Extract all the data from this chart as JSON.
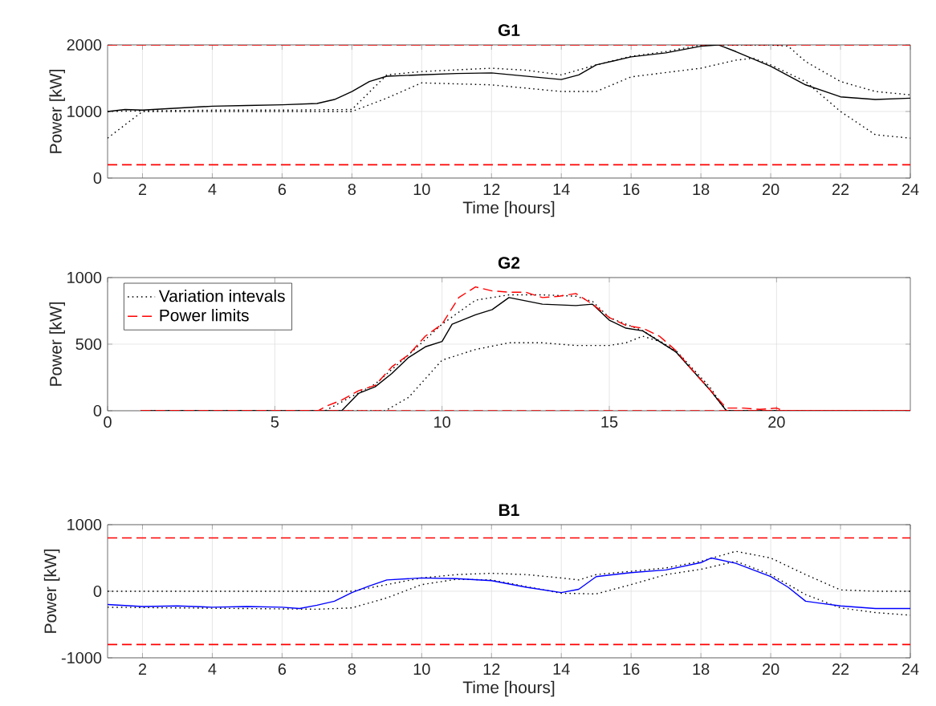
{
  "chart_data": [
    {
      "type": "line",
      "title": "G1",
      "xlabel": "Time [hours]",
      "ylabel": "Power [kW]",
      "xlim": [
        1,
        24
      ],
      "xticks": [
        2,
        4,
        6,
        8,
        10,
        12,
        14,
        16,
        18,
        20,
        22,
        24
      ],
      "ylim": [
        0,
        2000
      ],
      "yticks": [
        0,
        1000,
        2000
      ],
      "grid": true,
      "series": [
        {
          "color": "#000000",
          "line_style": "dotted",
          "x": [
            1,
            2,
            4,
            6,
            8,
            9,
            10,
            12,
            13,
            14,
            15,
            16,
            17,
            18,
            19,
            20,
            20.5,
            21,
            22,
            23,
            24
          ],
          "values": [
            1000,
            1010,
            1020,
            1020,
            1030,
            1550,
            1600,
            1650,
            1620,
            1550,
            1700,
            1830,
            1900,
            2000,
            2000,
            2000,
            1980,
            1750,
            1450,
            1300,
            1250
          ]
        },
        {
          "color": "#000000",
          "line_style": "dotted",
          "x": [
            1,
            2,
            4,
            6,
            8,
            9,
            10,
            12,
            14,
            15,
            16,
            18,
            19,
            19.5,
            20,
            21,
            22,
            23,
            24
          ],
          "values": [
            600,
            1000,
            1000,
            1000,
            1000,
            1200,
            1430,
            1400,
            1300,
            1300,
            1520,
            1650,
            1770,
            1800,
            1700,
            1450,
            1000,
            650,
            600
          ]
        },
        {
          "color": "#000000",
          "line_style": "solid",
          "x": [
            1,
            1.5,
            2,
            3,
            4,
            5,
            6,
            7,
            7.5,
            8,
            8.5,
            9,
            10,
            11,
            12,
            13,
            14,
            14.5,
            15,
            16,
            17,
            18,
            18.5,
            19,
            20,
            21,
            22,
            23,
            24
          ],
          "values": [
            1000,
            1030,
            1020,
            1050,
            1080,
            1090,
            1100,
            1120,
            1180,
            1300,
            1450,
            1530,
            1550,
            1570,
            1580,
            1530,
            1480,
            1550,
            1700,
            1820,
            1880,
            1980,
            2000,
            1900,
            1680,
            1400,
            1220,
            1180,
            1200
          ]
        }
      ],
      "ref_lines": [
        {
          "axis": "y",
          "value": 2000,
          "color": "#ff0000",
          "line_style": "dashed"
        },
        {
          "axis": "y",
          "value": 200,
          "color": "#ff0000",
          "line_style": "dashed"
        }
      ]
    },
    {
      "type": "line",
      "title": "G2",
      "ylabel": "Power [kW]",
      "xlim": [
        0,
        24
      ],
      "xticks": [
        0,
        5,
        10,
        15,
        20
      ],
      "ylim": [
        0,
        1000
      ],
      "yticks": [
        0,
        500,
        1000
      ],
      "grid": true,
      "legend": "top left",
      "series": [
        {
          "name": "Variation intevals",
          "color": "#000000",
          "line_style": "dotted",
          "x": [
            1,
            8.3,
            9,
            10,
            11,
            12,
            13,
            14,
            15,
            15.5,
            16,
            16.5,
            17,
            18,
            18.5,
            24
          ],
          "values": [
            0,
            0,
            100,
            380,
            460,
            510,
            510,
            490,
            490,
            510,
            560,
            520,
            440,
            160,
            0,
            0
          ]
        },
        {
          "color": "#000000",
          "line_style": "dotted",
          "x": [
            1,
            6.5,
            8,
            9,
            10,
            11,
            12,
            13,
            14,
            14.5,
            15,
            16,
            17,
            18,
            18.5,
            24
          ],
          "values": [
            0,
            0,
            200,
            420,
            650,
            830,
            870,
            870,
            860,
            820,
            700,
            600,
            450,
            180,
            0,
            0
          ]
        },
        {
          "color": "#000000",
          "line_style": "solid",
          "x": [
            1,
            6.5,
            7,
            7.5,
            8,
            8.5,
            9,
            9.5,
            10,
            10.3,
            11,
            11.5,
            12,
            13,
            14,
            14.5,
            15,
            15.5,
            16,
            16.5,
            17,
            17.5,
            18,
            18.5,
            24
          ],
          "values": [
            0,
            0,
            0,
            130,
            180,
            280,
            400,
            480,
            520,
            650,
            720,
            760,
            850,
            800,
            790,
            800,
            680,
            620,
            600,
            520,
            440,
            300,
            160,
            0,
            0
          ]
        },
        {
          "name": "Power limits",
          "color": "#ff0000",
          "line_style": "dashed",
          "x": [
            1,
            6.3,
            6.5,
            7,
            7.5,
            8,
            8.5,
            9,
            9.5,
            10,
            10.5,
            11,
            11.5,
            12,
            12.5,
            13,
            13.5,
            14,
            14.5,
            15,
            15.5,
            16,
            16.5,
            17,
            17.5,
            18,
            18.5,
            19,
            19.5,
            20,
            20.2,
            24
          ],
          "values": [
            0,
            0,
            30,
            80,
            150,
            190,
            330,
            420,
            560,
            650,
            850,
            930,
            900,
            890,
            890,
            850,
            860,
            880,
            800,
            700,
            640,
            620,
            560,
            450,
            300,
            160,
            20,
            20,
            10,
            20,
            0,
            0
          ]
        },
        {
          "color": "#ff0000",
          "line_style": "dashed",
          "x": [
            1,
            24
          ],
          "values": [
            0,
            0
          ]
        }
      ]
    },
    {
      "type": "line",
      "title": "B1",
      "xlabel": "Time [hours]",
      "ylabel": "Power [kW]",
      "xlim": [
        1,
        24
      ],
      "xticks": [
        2,
        4,
        6,
        8,
        10,
        12,
        14,
        16,
        18,
        20,
        22,
        24
      ],
      "ylim": [
        -1000,
        1000
      ],
      "yticks": [
        -1000,
        0,
        1000
      ],
      "grid": true,
      "series": [
        {
          "color": "#000000",
          "line_style": "dotted",
          "x": [
            1,
            8,
            9,
            10,
            11,
            12,
            13,
            14,
            14.5,
            15,
            16,
            17,
            18,
            19,
            20,
            21,
            22,
            23,
            24
          ],
          "values": [
            0,
            0,
            100,
            200,
            250,
            270,
            250,
            200,
            170,
            250,
            300,
            350,
            450,
            600,
            500,
            250,
            20,
            0,
            0
          ]
        },
        {
          "color": "#000000",
          "line_style": "dotted",
          "x": [
            1,
            7,
            8,
            9,
            10,
            11,
            12,
            14,
            15,
            16,
            17,
            18,
            19,
            20,
            21,
            22,
            23,
            24
          ],
          "values": [
            -240,
            -270,
            -250,
            -100,
            100,
            180,
            170,
            -30,
            -40,
            100,
            250,
            330,
            450,
            250,
            -50,
            -250,
            -320,
            -360
          ]
        },
        {
          "color": "#0000ff",
          "line_style": "solid",
          "x": [
            1,
            2,
            3,
            4,
            5,
            6,
            6.5,
            7,
            7.5,
            8,
            8.5,
            9,
            10,
            11,
            12,
            13,
            14,
            14.5,
            15,
            16,
            17,
            18,
            18.3,
            19,
            20,
            20.5,
            21,
            22,
            23,
            24
          ],
          "values": [
            -200,
            -230,
            -220,
            -240,
            -230,
            -240,
            -260,
            -210,
            -150,
            -20,
            80,
            170,
            200,
            190,
            160,
            60,
            -20,
            30,
            220,
            280,
            320,
            430,
            500,
            420,
            220,
            60,
            -150,
            -220,
            -260,
            -260
          ]
        }
      ],
      "ref_lines": [
        {
          "axis": "y",
          "value": 800,
          "color": "#ff0000",
          "line_style": "dashed"
        },
        {
          "axis": "y",
          "value": -800,
          "color": "#ff0000",
          "line_style": "dashed"
        }
      ]
    }
  ]
}
